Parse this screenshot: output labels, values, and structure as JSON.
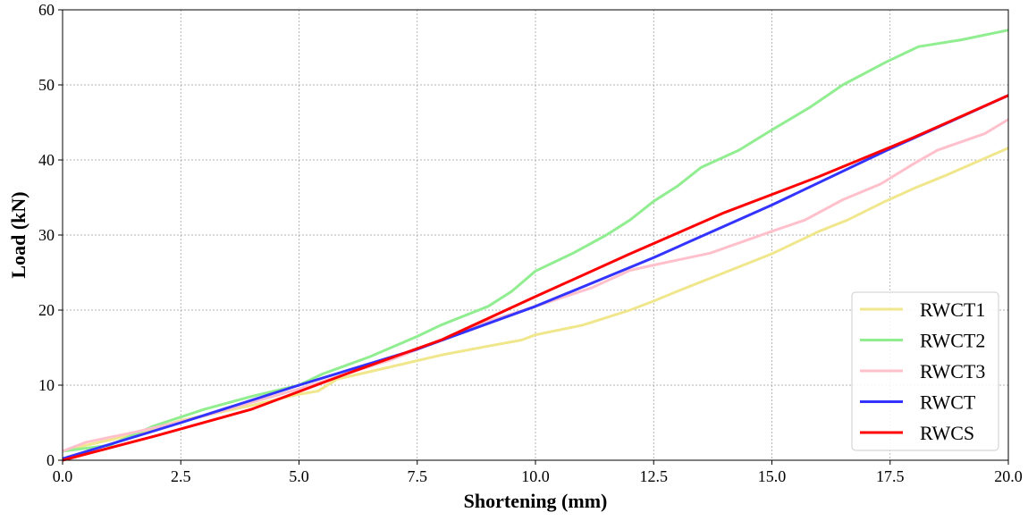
{
  "chart_data": {
    "type": "line",
    "title": "",
    "xlabel": "Shortening (mm)",
    "ylabel": "Load (kN)",
    "xlim": [
      0,
      20
    ],
    "ylim": [
      0,
      60
    ],
    "xticks": [
      "0.0",
      "2.5",
      "5.0",
      "7.5",
      "10.0",
      "12.5",
      "15.0",
      "17.5",
      "20.0"
    ],
    "yticks": [
      "0",
      "10",
      "20",
      "30",
      "40",
      "50",
      "60"
    ],
    "grid": true,
    "legend_position": "bottom-right",
    "series": [
      {
        "name": "RWCT1",
        "color": "#f0e68c",
        "points": [
          [
            0,
            1.2
          ],
          [
            0.5,
            2.0
          ],
          [
            1.5,
            3.4
          ],
          [
            2.5,
            5.3
          ],
          [
            4,
            7.3
          ],
          [
            5,
            8.8
          ],
          [
            5.4,
            9.2
          ],
          [
            5.8,
            10.8
          ],
          [
            6.5,
            11.8
          ],
          [
            8,
            14
          ],
          [
            9,
            15.2
          ],
          [
            9.7,
            16
          ],
          [
            10,
            16.7
          ],
          [
            11,
            18
          ],
          [
            11.5,
            19
          ],
          [
            12,
            20
          ],
          [
            12.5,
            21.2
          ],
          [
            13,
            22.5
          ],
          [
            14,
            25
          ],
          [
            15,
            27.5
          ],
          [
            16,
            30.5
          ],
          [
            16.6,
            32
          ],
          [
            17.4,
            34.5
          ],
          [
            18,
            36.2
          ],
          [
            18.7,
            38
          ],
          [
            20,
            41.6
          ]
        ]
      },
      {
        "name": "RWCT2",
        "color": "#90ee90",
        "points": [
          [
            0,
            1.2
          ],
          [
            1,
            2
          ],
          [
            1.9,
            4.5
          ],
          [
            3,
            6.8
          ],
          [
            4,
            8.5
          ],
          [
            5,
            10
          ],
          [
            5.5,
            11.5
          ],
          [
            6.5,
            13.8
          ],
          [
            7.5,
            16.5
          ],
          [
            8,
            18
          ],
          [
            9,
            20.5
          ],
          [
            9.5,
            22.5
          ],
          [
            10,
            25.2
          ],
          [
            10.8,
            27.6
          ],
          [
            11.5,
            30
          ],
          [
            12,
            32
          ],
          [
            12.5,
            34.5
          ],
          [
            13,
            36.5
          ],
          [
            13.5,
            39
          ],
          [
            14.3,
            41.3
          ],
          [
            15,
            44
          ],
          [
            15.8,
            47
          ],
          [
            16.5,
            50
          ],
          [
            17.4,
            53
          ],
          [
            18.1,
            55.1
          ],
          [
            19,
            56
          ],
          [
            20,
            57.3
          ]
        ]
      },
      {
        "name": "RWCT3",
        "color": "#ffc0cb",
        "points": [
          [
            0,
            1.2
          ],
          [
            0.5,
            2.4
          ],
          [
            1.5,
            3.7
          ],
          [
            3,
            5.9
          ],
          [
            5,
            9.5
          ],
          [
            7,
            13.5
          ],
          [
            9,
            18.5
          ],
          [
            10,
            20.5
          ],
          [
            11.2,
            23
          ],
          [
            12,
            25.3
          ],
          [
            12.5,
            26
          ],
          [
            13.7,
            27.6
          ],
          [
            15,
            30.5
          ],
          [
            15.7,
            32
          ],
          [
            16.5,
            34.7
          ],
          [
            17.3,
            36.8
          ],
          [
            18,
            39.5
          ],
          [
            18.5,
            41.3
          ],
          [
            19.5,
            43.5
          ],
          [
            20,
            45.4
          ]
        ]
      },
      {
        "name": "RWCT",
        "color": "#3333ff",
        "points": [
          [
            0,
            0.2
          ],
          [
            2.5,
            5
          ],
          [
            5,
            10
          ],
          [
            7.5,
            14.8
          ],
          [
            10,
            20.5
          ],
          [
            12.5,
            27
          ],
          [
            15,
            34
          ],
          [
            17.5,
            41.5
          ],
          [
            20,
            48.6
          ]
        ]
      },
      {
        "name": "RWCS",
        "color": "#ff0000",
        "points": [
          [
            0,
            0
          ],
          [
            2,
            3.3
          ],
          [
            4,
            6.8
          ],
          [
            6,
            11.5
          ],
          [
            8,
            16
          ],
          [
            10,
            21.8
          ],
          [
            12,
            27.5
          ],
          [
            14,
            33
          ],
          [
            16,
            37.8
          ],
          [
            18,
            43
          ],
          [
            20,
            48.6
          ]
        ]
      }
    ]
  }
}
